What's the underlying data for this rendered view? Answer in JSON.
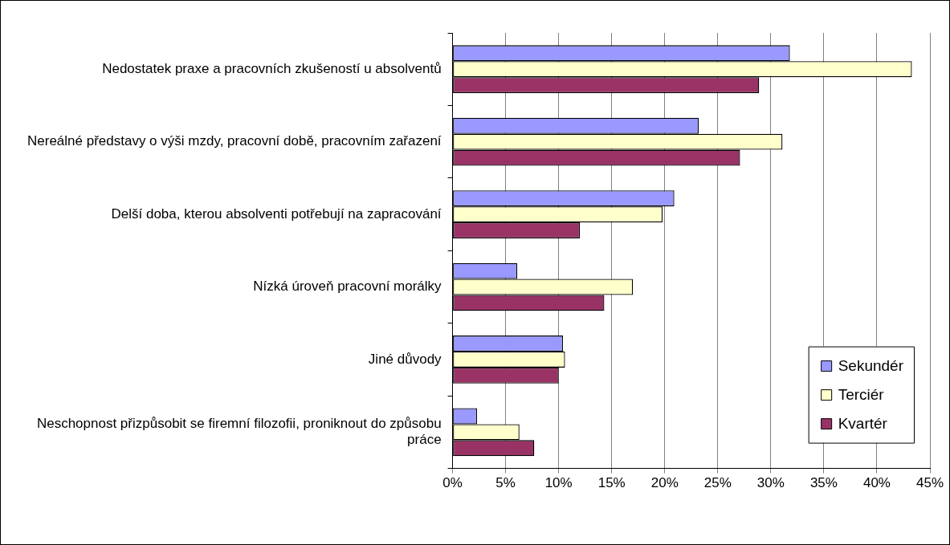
{
  "chart_data": {
    "type": "bar",
    "orientation": "horizontal",
    "categories": [
      "Nedostatek praxe a pracovních zkušeností u absolventů",
      "Nereálné představy o výši mzdy, pracovní době, pracovním zařazení",
      "Delší doba, kterou absolventi potřebují na zapracování",
      "Nízká úroveň pracovní morálky",
      "Jiné důvody",
      "Neschopnost přizpůsobit se firemní filozofii, proniknout do způsobu práce"
    ],
    "series": [
      {
        "name": "Sekundér",
        "color": "#9999ff",
        "values": [
          31.8,
          23.2,
          20.9,
          6.1,
          10.4,
          2.3
        ]
      },
      {
        "name": "Terciér",
        "color": "#ffffcc",
        "values": [
          43.3,
          31.1,
          19.8,
          17.0,
          10.6,
          6.3
        ]
      },
      {
        "name": "Kvartér",
        "color": "#993366",
        "values": [
          28.9,
          27.1,
          12.0,
          14.3,
          10.0,
          7.7
        ]
      }
    ],
    "xlim": [
      0,
      45
    ],
    "xticks": [
      {
        "value": 0,
        "label": "0%"
      },
      {
        "value": 5,
        "label": "5%"
      },
      {
        "value": 10,
        "label": "10%"
      },
      {
        "value": 15,
        "label": "15%"
      },
      {
        "value": 20,
        "label": "20%"
      },
      {
        "value": 25,
        "label": "25%"
      },
      {
        "value": 30,
        "label": "30%"
      },
      {
        "value": 35,
        "label": "35%"
      },
      {
        "value": 40,
        "label": "40%"
      },
      {
        "value": 45,
        "label": "45%"
      }
    ],
    "grid": "x",
    "legend": "bottom right"
  }
}
